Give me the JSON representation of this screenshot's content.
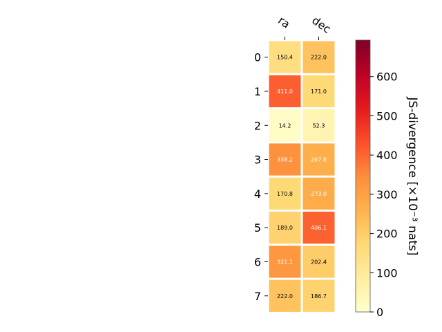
{
  "chart_data": {
    "type": "heatmap",
    "columns": [
      "ra",
      "dec"
    ],
    "rows": [
      "0",
      "1",
      "2",
      "3",
      "4",
      "5",
      "6",
      "7"
    ],
    "values": [
      [
        150.4,
        222.0
      ],
      [
        411.0,
        171.0
      ],
      [
        14.2,
        52.3
      ],
      [
        338.2,
        267.8
      ],
      [
        170.8,
        273.0
      ],
      [
        189.0,
        406.1
      ],
      [
        321.1,
        202.4
      ],
      [
        222.0,
        186.7
      ]
    ],
    "value_labels": [
      [
        "150.4",
        "222.0"
      ],
      [
        "411.0",
        "171.0"
      ],
      [
        "14.2",
        "52.3"
      ],
      [
        "338.2",
        "267.8"
      ],
      [
        "170.8",
        "273.0"
      ],
      [
        "189.0",
        "406.1"
      ],
      [
        "321.1",
        "202.4"
      ],
      [
        "222.0",
        "186.7"
      ]
    ],
    "colorbar": {
      "label": "JS-divergence [×10⁻³ nats]",
      "range": [
        0,
        693
      ],
      "ticks": [
        0,
        100,
        200,
        300,
        400,
        500,
        600
      ],
      "tick_labels": [
        "0",
        "100",
        "200",
        "300",
        "400",
        "500",
        "600"
      ],
      "colormap": "YlOrRd"
    },
    "grid": false
  }
}
